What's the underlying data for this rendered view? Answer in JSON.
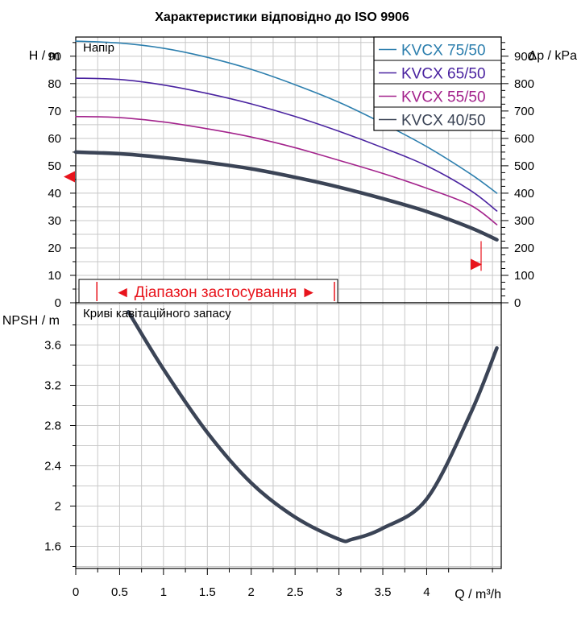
{
  "title": "Характеристики відповідно до ISO 9906",
  "colors": {
    "grid": "#c8c8c8",
    "frame": "#000000",
    "range": "#e8141c"
  },
  "chart_data": [
    {
      "type": "line",
      "panel": "head",
      "title": "Напір",
      "xlabel": "Q / m³/h",
      "ylabel": "H / m",
      "ylabel_right": "Δp / kPa",
      "xlim": [
        0,
        4.85
      ],
      "ylim": [
        0,
        97
      ],
      "ylim_right": [
        0,
        970
      ],
      "yticks": [
        0,
        10,
        20,
        30,
        40,
        50,
        60,
        70,
        80,
        90
      ],
      "yticks_right": [
        0,
        100,
        200,
        300,
        400,
        500,
        600,
        700,
        800,
        900
      ],
      "grid": true,
      "legend_position": "top-right",
      "application_range": {
        "label": "◄ Діапазон застосування ►",
        "q_min": 0.25,
        "q_max": 4.75,
        "head_marker_left": 46,
        "head_marker_right": 14
      },
      "series": [
        {
          "name": "KVCX 75/50",
          "color": "#2d7fae",
          "width": 1.6,
          "points": [
            [
              0,
              95.5
            ],
            [
              0.5,
              94.8
            ],
            [
              1,
              92.9
            ],
            [
              1.5,
              89.6
            ],
            [
              2,
              85.2
            ],
            [
              2.5,
              79.6
            ],
            [
              3,
              73.2
            ],
            [
              3.5,
              65.5
            ],
            [
              4,
              57
            ],
            [
              4.5,
              47
            ],
            [
              4.8,
              40
            ]
          ]
        },
        {
          "name": "KVCX 65/50",
          "color": "#4a23a0",
          "width": 1.6,
          "points": [
            [
              0,
              82
            ],
            [
              0.5,
              81.5
            ],
            [
              1,
              79.5
            ],
            [
              1.5,
              76.4
            ],
            [
              2,
              72.6
            ],
            [
              2.5,
              68
            ],
            [
              3,
              62.6
            ],
            [
              3.5,
              56.6
            ],
            [
              4,
              50
            ],
            [
              4.5,
              41
            ],
            [
              4.8,
              33.5
            ]
          ]
        },
        {
          "name": "KVCX 55/50",
          "color": "#a3238c",
          "width": 1.6,
          "points": [
            [
              0,
              68
            ],
            [
              0.5,
              67.6
            ],
            [
              1,
              66
            ],
            [
              1.5,
              63.5
            ],
            [
              2,
              60.5
            ],
            [
              2.5,
              56.6
            ],
            [
              3,
              52
            ],
            [
              3.5,
              47.2
            ],
            [
              4,
              41.8
            ],
            [
              4.5,
              35.6
            ],
            [
              4.8,
              28.5
            ]
          ]
        },
        {
          "name": "KVCX 40/50",
          "color": "#3b4456",
          "width": 4.5,
          "points": [
            [
              0,
              55
            ],
            [
              0.5,
              54.4
            ],
            [
              1,
              53
            ],
            [
              1.5,
              51.2
            ],
            [
              2,
              48.9
            ],
            [
              2.5,
              45.8
            ],
            [
              3,
              42.2
            ],
            [
              3.5,
              38
            ],
            [
              4,
              33.3
            ],
            [
              4.5,
              27.4
            ],
            [
              4.8,
              23
            ]
          ]
        }
      ]
    },
    {
      "type": "line",
      "panel": "npsh",
      "title": "Криві кавітаційного запасу",
      "xlabel": "Q / m³/h",
      "ylabel": "NPSH / m",
      "xlim": [
        0,
        4.85
      ],
      "ylim": [
        1.38,
        4.02
      ],
      "xticks": [
        0,
        0.5,
        1,
        1.5,
        2,
        2.5,
        3,
        3.5,
        4
      ],
      "xtick_labels": [
        "0",
        "0.5",
        "1",
        "1.5",
        "2",
        "2.5",
        "3",
        "3.5",
        "4"
      ],
      "yticks": [
        1.6,
        2,
        2.4,
        2.8,
        3.2,
        3.6
      ],
      "ytick_labels": [
        "1.6",
        "2",
        "2.4",
        "2.8",
        "3.2",
        "3.6"
      ],
      "grid": true,
      "series": [
        {
          "color": "#3b4456",
          "width": 4.5,
          "points": [
            [
              0.6,
              3.93
            ],
            [
              1,
              3.36
            ],
            [
              1.5,
              2.73
            ],
            [
              2,
              2.23
            ],
            [
              2.5,
              1.89
            ],
            [
              3,
              1.67
            ],
            [
              3.15,
              1.67
            ],
            [
              3.5,
              1.78
            ],
            [
              4,
              2.07
            ],
            [
              4.5,
              2.92
            ],
            [
              4.8,
              3.57
            ]
          ]
        }
      ]
    }
  ]
}
